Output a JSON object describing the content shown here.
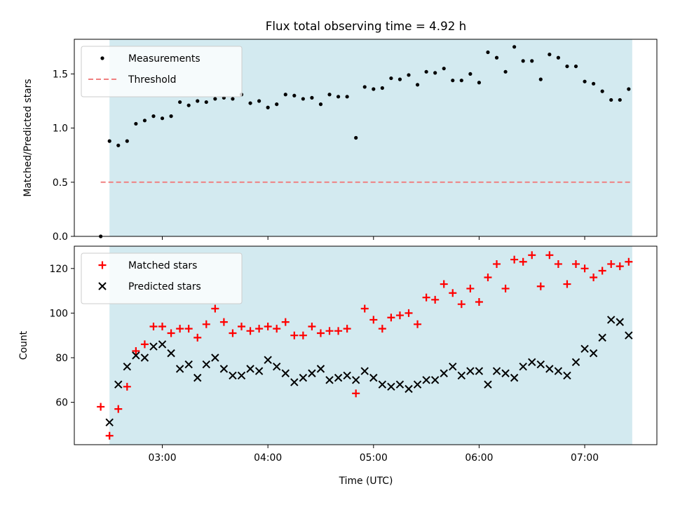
{
  "chart_data": [
    {
      "type": "scatter",
      "title": "Flux total observing time = 4.92 h",
      "xlabel": "",
      "ylabel": "Matched/Predicted stars",
      "xlim": [
        "02:10",
        "07:41"
      ],
      "ylim": [
        0,
        1.82
      ],
      "xticks": [
        "03:00",
        "04:00",
        "05:00",
        "06:00",
        "07:00"
      ],
      "xtick_labels_visible": false,
      "yticks": [
        "0.0",
        "0.5",
        "1.0",
        "1.5"
      ],
      "grid": false,
      "legend_position": "top-left",
      "shaded_interval": {
        "start": "02:30",
        "end": "07:27",
        "color": "#d3eaf0"
      },
      "threshold": {
        "name": "Threshold",
        "value": 0.5,
        "start": "02:25",
        "end": "07:27",
        "color": "#f08080",
        "style": "dashed"
      },
      "series": [
        {
          "name": "Measurements",
          "marker": "dot",
          "color": "#000000",
          "x": [
            "02:25",
            "02:30",
            "02:35",
            "02:40",
            "02:45",
            "02:50",
            "02:55",
            "03:00",
            "03:05",
            "03:10",
            "03:15",
            "03:20",
            "03:25",
            "03:30",
            "03:35",
            "03:40",
            "03:45",
            "03:50",
            "03:55",
            "04:00",
            "04:05",
            "04:10",
            "04:15",
            "04:20",
            "04:25",
            "04:30",
            "04:35",
            "04:40",
            "04:45",
            "04:50",
            "04:55",
            "05:00",
            "05:05",
            "05:10",
            "05:15",
            "05:20",
            "05:25",
            "05:30",
            "05:35",
            "05:40",
            "05:45",
            "05:50",
            "05:55",
            "06:00",
            "06:05",
            "06:10",
            "06:15",
            "06:20",
            "06:25",
            "06:30",
            "06:35",
            "06:40",
            "06:45",
            "06:50",
            "06:55",
            "07:00",
            "07:05",
            "07:10",
            "07:15",
            "07:20",
            "07:25"
          ],
          "y": [
            0.0,
            0.88,
            0.84,
            0.88,
            1.04,
            1.07,
            1.11,
            1.09,
            1.11,
            1.24,
            1.21,
            1.25,
            1.24,
            1.27,
            1.28,
            1.27,
            1.31,
            1.23,
            1.25,
            1.19,
            1.22,
            1.31,
            1.3,
            1.27,
            1.28,
            1.22,
            1.31,
            1.29,
            1.29,
            0.91,
            1.38,
            1.36,
            1.37,
            1.46,
            1.45,
            1.49,
            1.4,
            1.52,
            1.51,
            1.55,
            1.44,
            1.44,
            1.5,
            1.42,
            1.7,
            1.65,
            1.52,
            1.75,
            1.62,
            1.62,
            1.45,
            1.68,
            1.65,
            1.57,
            1.57,
            1.43,
            1.41,
            1.34,
            1.26,
            1.26,
            1.36
          ]
        }
      ]
    },
    {
      "type": "scatter",
      "title": "",
      "xlabel": "Time (UTC)",
      "ylabel": "Count",
      "xlim": [
        "02:10",
        "07:41"
      ],
      "ylim": [
        41,
        130
      ],
      "xticks": [
        "03:00",
        "04:00",
        "05:00",
        "06:00",
        "07:00"
      ],
      "yticks": [
        "60",
        "80",
        "100",
        "120"
      ],
      "grid": false,
      "legend_position": "top-left",
      "shaded_interval": {
        "start": "02:30",
        "end": "07:27",
        "color": "#d3eaf0"
      },
      "series": [
        {
          "name": "Matched stars",
          "marker": "plus",
          "color": "#ff0000",
          "x": [
            "02:25",
            "02:30",
            "02:35",
            "02:40",
            "02:45",
            "02:50",
            "02:55",
            "03:00",
            "03:05",
            "03:10",
            "03:15",
            "03:20",
            "03:25",
            "03:30",
            "03:35",
            "03:40",
            "03:45",
            "03:50",
            "03:55",
            "04:00",
            "04:05",
            "04:10",
            "04:15",
            "04:20",
            "04:25",
            "04:30",
            "04:35",
            "04:40",
            "04:45",
            "04:50",
            "04:55",
            "05:00",
            "05:05",
            "05:10",
            "05:15",
            "05:20",
            "05:25",
            "05:30",
            "05:35",
            "05:40",
            "05:45",
            "05:50",
            "05:55",
            "06:00",
            "06:05",
            "06:10",
            "06:15",
            "06:20",
            "06:25",
            "06:30",
            "06:35",
            "06:40",
            "06:45",
            "06:50",
            "06:55",
            "07:00",
            "07:05",
            "07:10",
            "07:15",
            "07:20",
            "07:25"
          ],
          "y": [
            58,
            45,
            57,
            67,
            83,
            86,
            94,
            94,
            91,
            93,
            93,
            89,
            95,
            102,
            96,
            91,
            94,
            92,
            93,
            94,
            93,
            96,
            90,
            90,
            94,
            91,
            92,
            92,
            93,
            64,
            102,
            97,
            93,
            98,
            99,
            100,
            95,
            107,
            106,
            113,
            109,
            104,
            111,
            105,
            116,
            122,
            111,
            124,
            123,
            126,
            112,
            126,
            122,
            113,
            122,
            120,
            116,
            119,
            122,
            121,
            123
          ]
        },
        {
          "name": "Predicted stars",
          "marker": "x",
          "color": "#000000",
          "x": [
            "02:30",
            "02:35",
            "02:40",
            "02:45",
            "02:50",
            "02:55",
            "03:00",
            "03:05",
            "03:10",
            "03:15",
            "03:20",
            "03:25",
            "03:30",
            "03:35",
            "03:40",
            "03:45",
            "03:50",
            "03:55",
            "04:00",
            "04:05",
            "04:10",
            "04:15",
            "04:20",
            "04:25",
            "04:30",
            "04:35",
            "04:40",
            "04:45",
            "04:50",
            "04:55",
            "05:00",
            "05:05",
            "05:10",
            "05:15",
            "05:20",
            "05:25",
            "05:30",
            "05:35",
            "05:40",
            "05:45",
            "05:50",
            "05:55",
            "06:00",
            "06:05",
            "06:10",
            "06:15",
            "06:20",
            "06:25",
            "06:30",
            "06:35",
            "06:40",
            "06:45",
            "06:50",
            "06:55",
            "07:00",
            "07:05",
            "07:10",
            "07:15",
            "07:20",
            "07:25"
          ],
          "y": [
            51,
            68,
            76,
            81,
            80,
            85,
            86,
            82,
            75,
            77,
            71,
            77,
            80,
            75,
            72,
            72,
            75,
            74,
            79,
            76,
            73,
            69,
            71,
            73,
            75,
            70,
            71,
            72,
            70,
            74,
            71,
            68,
            67,
            68,
            66,
            68,
            70,
            70,
            73,
            76,
            72,
            74,
            74,
            68,
            74,
            73,
            71,
            76,
            78,
            77,
            75,
            74,
            72,
            78,
            84,
            82,
            89,
            97,
            96,
            90
          ]
        }
      ]
    }
  ]
}
